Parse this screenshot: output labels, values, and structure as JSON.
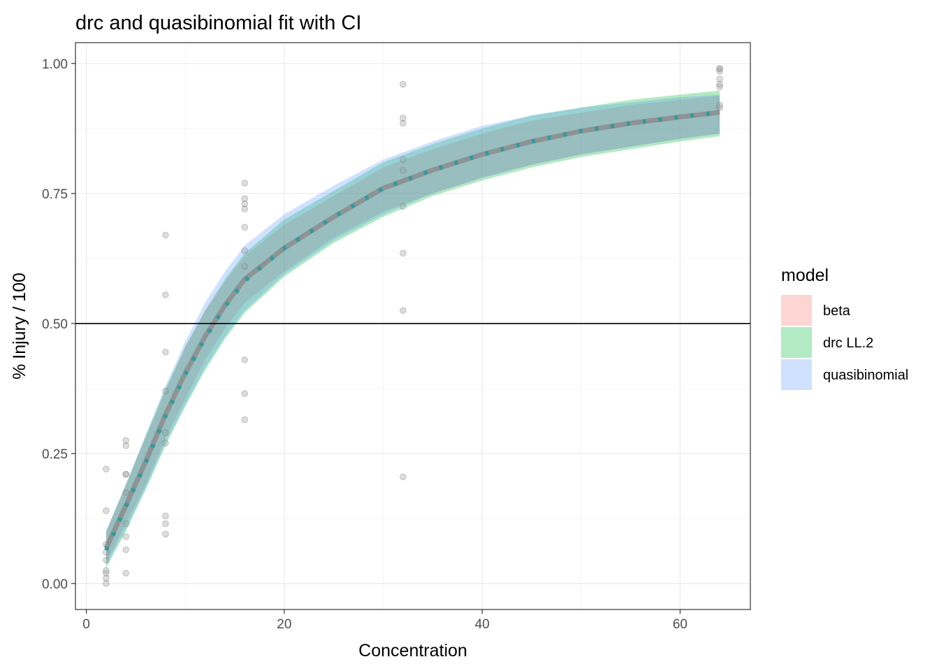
{
  "chart_data": {
    "type": "line",
    "title": "drc and quasibinomial fit with CI",
    "xlabel": "Concentration",
    "ylabel": "% Injury / 100",
    "xlim": [
      -1.1,
      67.1
    ],
    "ylim": [
      -0.05,
      1.04
    ],
    "x_ticks": [
      0,
      20,
      40,
      60
    ],
    "x_tick_labels": [
      "0",
      "20",
      "40",
      "60"
    ],
    "y_ticks": [
      0,
      0.25,
      0.5,
      0.75,
      1.0
    ],
    "y_tick_labels": [
      "0.00",
      "0.25",
      "0.50",
      "0.75",
      "1.00"
    ],
    "grid": true,
    "hline": 0.5,
    "legend": {
      "title": "model",
      "placement": "right",
      "entries": [
        {
          "label": "beta",
          "color": "#f8766d"
        },
        {
          "label": "drc LL.2",
          "color": "#00ba38"
        },
        {
          "label": "quasibinomial",
          "color": "#619cff"
        }
      ]
    },
    "observations": [
      {
        "x": 2,
        "y": 0.0
      },
      {
        "x": 2,
        "y": 0.01
      },
      {
        "x": 2,
        "y": 0.02
      },
      {
        "x": 2,
        "y": 0.025
      },
      {
        "x": 2,
        "y": 0.045
      },
      {
        "x": 2,
        "y": 0.06
      },
      {
        "x": 2,
        "y": 0.075
      },
      {
        "x": 2,
        "y": 0.14
      },
      {
        "x": 2,
        "y": 0.22
      },
      {
        "x": 4,
        "y": 0.02
      },
      {
        "x": 4,
        "y": 0.065
      },
      {
        "x": 4,
        "y": 0.09
      },
      {
        "x": 4,
        "y": 0.115
      },
      {
        "x": 4,
        "y": 0.175
      },
      {
        "x": 4,
        "y": 0.21
      },
      {
        "x": 4,
        "y": 0.21
      },
      {
        "x": 4,
        "y": 0.265
      },
      {
        "x": 4,
        "y": 0.275
      },
      {
        "x": 8,
        "y": 0.095
      },
      {
        "x": 8,
        "y": 0.115
      },
      {
        "x": 8,
        "y": 0.13
      },
      {
        "x": 8,
        "y": 0.27
      },
      {
        "x": 8,
        "y": 0.29
      },
      {
        "x": 8,
        "y": 0.37
      },
      {
        "x": 8,
        "y": 0.445
      },
      {
        "x": 8,
        "y": 0.555
      },
      {
        "x": 8,
        "y": 0.67
      },
      {
        "x": 16,
        "y": 0.315
      },
      {
        "x": 16,
        "y": 0.365
      },
      {
        "x": 16,
        "y": 0.43
      },
      {
        "x": 16,
        "y": 0.61
      },
      {
        "x": 16,
        "y": 0.64
      },
      {
        "x": 16,
        "y": 0.685
      },
      {
        "x": 16,
        "y": 0.72
      },
      {
        "x": 16,
        "y": 0.73
      },
      {
        "x": 16,
        "y": 0.74
      },
      {
        "x": 16,
        "y": 0.77
      },
      {
        "x": 32,
        "y": 0.205
      },
      {
        "x": 32,
        "y": 0.525
      },
      {
        "x": 32,
        "y": 0.635
      },
      {
        "x": 32,
        "y": 0.725
      },
      {
        "x": 32,
        "y": 0.795
      },
      {
        "x": 32,
        "y": 0.815
      },
      {
        "x": 32,
        "y": 0.885
      },
      {
        "x": 32,
        "y": 0.895
      },
      {
        "x": 32,
        "y": 0.96
      },
      {
        "x": 64,
        "y": 0.915
      },
      {
        "x": 64,
        "y": 0.92
      },
      {
        "x": 64,
        "y": 0.955
      },
      {
        "x": 64,
        "y": 0.96
      },
      {
        "x": 64,
        "y": 0.97
      },
      {
        "x": 64,
        "y": 0.985
      },
      {
        "x": 64,
        "y": 0.99
      },
      {
        "x": 64,
        "y": 0.99
      }
    ],
    "series": [
      {
        "name": "beta",
        "color": "#f8766d",
        "points": [
          {
            "x": 2,
            "lower": 0.04,
            "fit": 0.068,
            "upper": 0.1
          },
          {
            "x": 4,
            "lower": 0.115,
            "fit": 0.15,
            "upper": 0.19
          },
          {
            "x": 6,
            "lower": 0.19,
            "fit": 0.235,
            "upper": 0.28
          },
          {
            "x": 8,
            "lower": 0.28,
            "fit": 0.325,
            "upper": 0.37
          },
          {
            "x": 10,
            "lower": 0.355,
            "fit": 0.405,
            "upper": 0.455
          },
          {
            "x": 12,
            "lower": 0.43,
            "fit": 0.475,
            "upper": 0.525
          },
          {
            "x": 14,
            "lower": 0.49,
            "fit": 0.535,
            "upper": 0.58
          },
          {
            "x": 16,
            "lower": 0.54,
            "fit": 0.585,
            "upper": 0.63
          },
          {
            "x": 20,
            "lower": 0.6,
            "fit": 0.645,
            "upper": 0.69
          },
          {
            "x": 25,
            "lower": 0.665,
            "fit": 0.705,
            "upper": 0.745
          },
          {
            "x": 30,
            "lower": 0.715,
            "fit": 0.76,
            "upper": 0.8
          },
          {
            "x": 35,
            "lower": 0.75,
            "fit": 0.795,
            "upper": 0.835
          },
          {
            "x": 40,
            "lower": 0.78,
            "fit": 0.825,
            "upper": 0.865
          },
          {
            "x": 45,
            "lower": 0.805,
            "fit": 0.85,
            "upper": 0.89
          },
          {
            "x": 50,
            "lower": 0.825,
            "fit": 0.87,
            "upper": 0.905
          },
          {
            "x": 55,
            "lower": 0.84,
            "fit": 0.885,
            "upper": 0.92
          },
          {
            "x": 60,
            "lower": 0.855,
            "fit": 0.897,
            "upper": 0.93
          },
          {
            "x": 64,
            "lower": 0.865,
            "fit": 0.906,
            "upper": 0.938
          }
        ]
      },
      {
        "name": "drc LL.2",
        "color": "#00ba38",
        "points": [
          {
            "x": 2,
            "lower": 0.03,
            "fit": 0.062,
            "upper": 0.1
          },
          {
            "x": 4,
            "lower": 0.1,
            "fit": 0.145,
            "upper": 0.19
          },
          {
            "x": 6,
            "lower": 0.18,
            "fit": 0.23,
            "upper": 0.285
          },
          {
            "x": 8,
            "lower": 0.265,
            "fit": 0.32,
            "upper": 0.375
          },
          {
            "x": 10,
            "lower": 0.34,
            "fit": 0.4,
            "upper": 0.455
          },
          {
            "x": 12,
            "lower": 0.41,
            "fit": 0.47,
            "upper": 0.525
          },
          {
            "x": 14,
            "lower": 0.47,
            "fit": 0.53,
            "upper": 0.585
          },
          {
            "x": 16,
            "lower": 0.52,
            "fit": 0.58,
            "upper": 0.635
          },
          {
            "x": 20,
            "lower": 0.59,
            "fit": 0.645,
            "upper": 0.7
          },
          {
            "x": 25,
            "lower": 0.655,
            "fit": 0.705,
            "upper": 0.755
          },
          {
            "x": 30,
            "lower": 0.705,
            "fit": 0.76,
            "upper": 0.81
          },
          {
            "x": 35,
            "lower": 0.745,
            "fit": 0.795,
            "upper": 0.845
          },
          {
            "x": 40,
            "lower": 0.775,
            "fit": 0.825,
            "upper": 0.875
          },
          {
            "x": 45,
            "lower": 0.8,
            "fit": 0.85,
            "upper": 0.9
          },
          {
            "x": 50,
            "lower": 0.82,
            "fit": 0.87,
            "upper": 0.915
          },
          {
            "x": 55,
            "lower": 0.835,
            "fit": 0.885,
            "upper": 0.93
          },
          {
            "x": 60,
            "lower": 0.85,
            "fit": 0.897,
            "upper": 0.94
          },
          {
            "x": 64,
            "lower": 0.86,
            "fit": 0.906,
            "upper": 0.948
          }
        ]
      },
      {
        "name": "quasibinomial",
        "color": "#619cff",
        "points": [
          {
            "x": 2,
            "lower": 0.035,
            "fit": 0.064,
            "upper": 0.1
          },
          {
            "x": 4,
            "lower": 0.105,
            "fit": 0.148,
            "upper": 0.19
          },
          {
            "x": 6,
            "lower": 0.185,
            "fit": 0.232,
            "upper": 0.285
          },
          {
            "x": 8,
            "lower": 0.27,
            "fit": 0.322,
            "upper": 0.38
          },
          {
            "x": 10,
            "lower": 0.345,
            "fit": 0.402,
            "upper": 0.465
          },
          {
            "x": 12,
            "lower": 0.415,
            "fit": 0.472,
            "upper": 0.54
          },
          {
            "x": 14,
            "lower": 0.475,
            "fit": 0.532,
            "upper": 0.6
          },
          {
            "x": 16,
            "lower": 0.525,
            "fit": 0.582,
            "upper": 0.65
          },
          {
            "x": 20,
            "lower": 0.595,
            "fit": 0.645,
            "upper": 0.71
          },
          {
            "x": 25,
            "lower": 0.66,
            "fit": 0.705,
            "upper": 0.765
          },
          {
            "x": 30,
            "lower": 0.71,
            "fit": 0.76,
            "upper": 0.815
          },
          {
            "x": 35,
            "lower": 0.75,
            "fit": 0.795,
            "upper": 0.85
          },
          {
            "x": 40,
            "lower": 0.78,
            "fit": 0.825,
            "upper": 0.88
          },
          {
            "x": 45,
            "lower": 0.805,
            "fit": 0.85,
            "upper": 0.9
          },
          {
            "x": 50,
            "lower": 0.825,
            "fit": 0.87,
            "upper": 0.915
          },
          {
            "x": 55,
            "lower": 0.84,
            "fit": 0.885,
            "upper": 0.925
          },
          {
            "x": 60,
            "lower": 0.855,
            "fit": 0.897,
            "upper": 0.935
          },
          {
            "x": 64,
            "lower": 0.865,
            "fit": 0.906,
            "upper": 0.94
          }
        ]
      }
    ]
  }
}
